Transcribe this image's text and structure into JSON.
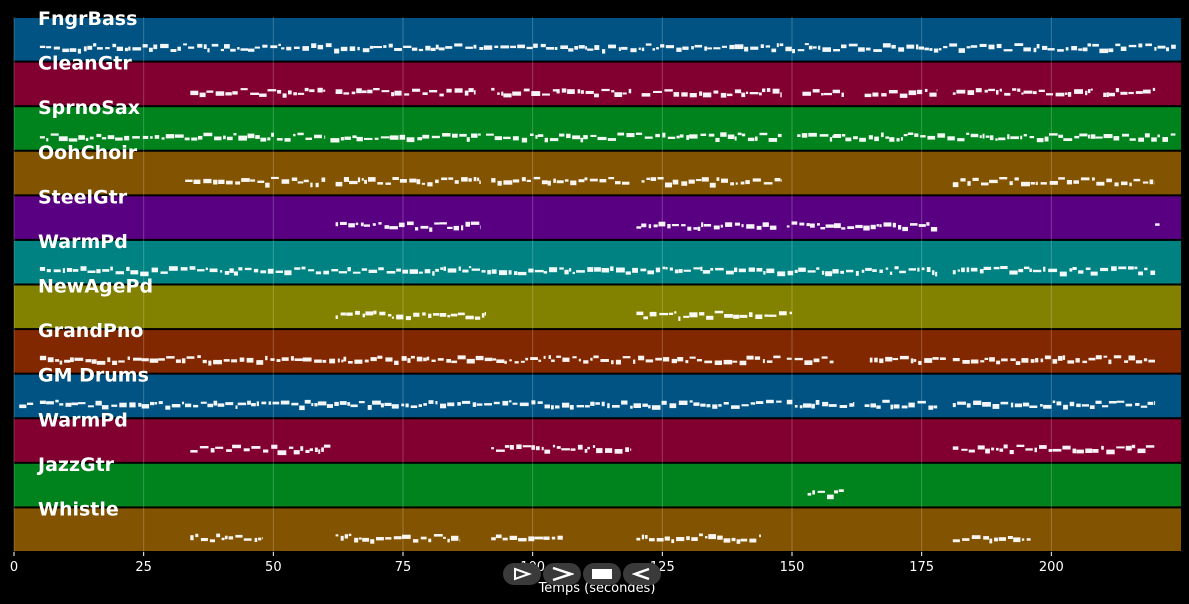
{
  "chart_data": {
    "type": "piano-roll",
    "title": "",
    "xlabel": "Temps (secondes)",
    "ylabel": "",
    "xlim": [
      0,
      225
    ],
    "x_ticks": [
      0,
      25,
      50,
      75,
      100,
      125,
      150,
      175,
      200
    ],
    "x_tick_labels": [
      "0",
      "25",
      "50",
      "75",
      "100",
      "125",
      "150",
      "175",
      "200"
    ],
    "grid": true,
    "tracks": [
      {
        "name": "FngrBass",
        "color": "#005382",
        "segments": [
          [
            5,
            224
          ]
        ]
      },
      {
        "name": "CleanGtr",
        "color": "#820030",
        "segments": [
          [
            34,
            60
          ],
          [
            62,
            89
          ],
          [
            92,
            119
          ],
          [
            121,
            148
          ],
          [
            152,
            160
          ],
          [
            164,
            178
          ],
          [
            181,
            208
          ],
          [
            210,
            220
          ]
        ]
      },
      {
        "name": "SprnoSax",
        "color": "#00821c",
        "segments": [
          [
            5,
            60
          ],
          [
            61,
            90
          ],
          [
            91,
            148
          ],
          [
            151,
            158
          ],
          [
            158,
            224
          ]
        ]
      },
      {
        "name": "OohChoir",
        "color": "#825300",
        "segments": [
          [
            33,
            60
          ],
          [
            62,
            90
          ],
          [
            92,
            119
          ],
          [
            121,
            148
          ],
          [
            181,
            220
          ]
        ]
      },
      {
        "name": "SteelGtr",
        "color": "#590082",
        "segments": [
          [
            62,
            90
          ],
          [
            120,
            147
          ],
          [
            149,
            178
          ],
          [
            220,
            221
          ]
        ]
      },
      {
        "name": "WarmPd",
        "color": "#008282",
        "segments": [
          [
            5,
            178
          ],
          [
            181,
            220
          ]
        ]
      },
      {
        "name": "NewAgePd",
        "color": "#828200",
        "segments": [
          [
            62,
            91
          ],
          [
            120,
            150
          ]
        ]
      },
      {
        "name": "GrandPno",
        "color": "#822800",
        "segments": [
          [
            5,
            148
          ],
          [
            149,
            158
          ],
          [
            165,
            180
          ],
          [
            181,
            220
          ]
        ]
      },
      {
        "name": "GM Drums",
        "color": "#005382",
        "segments": [
          [
            1,
            4
          ],
          [
            5,
            148
          ],
          [
            149,
            162
          ],
          [
            164,
            178
          ],
          [
            181,
            220
          ]
        ]
      },
      {
        "name": "WarmPd",
        "color": "#820030",
        "segments": [
          [
            34,
            61
          ],
          [
            92,
            119
          ],
          [
            181,
            220
          ]
        ]
      },
      {
        "name": "JazzGtr",
        "color": "#00821c",
        "segments": [
          [
            153,
            160
          ]
        ]
      },
      {
        "name": "Whistle",
        "color": "#825300",
        "segments": [
          [
            34,
            48
          ],
          [
            62,
            86
          ],
          [
            92,
            106
          ],
          [
            120,
            144
          ],
          [
            181,
            196
          ]
        ]
      }
    ]
  },
  "transport": {
    "buttons": [
      {
        "icon": "play-outline-icon"
      },
      {
        "icon": "fast-forward-icon"
      },
      {
        "icon": "stop-icon"
      },
      {
        "icon": "rewind-icon"
      }
    ]
  }
}
